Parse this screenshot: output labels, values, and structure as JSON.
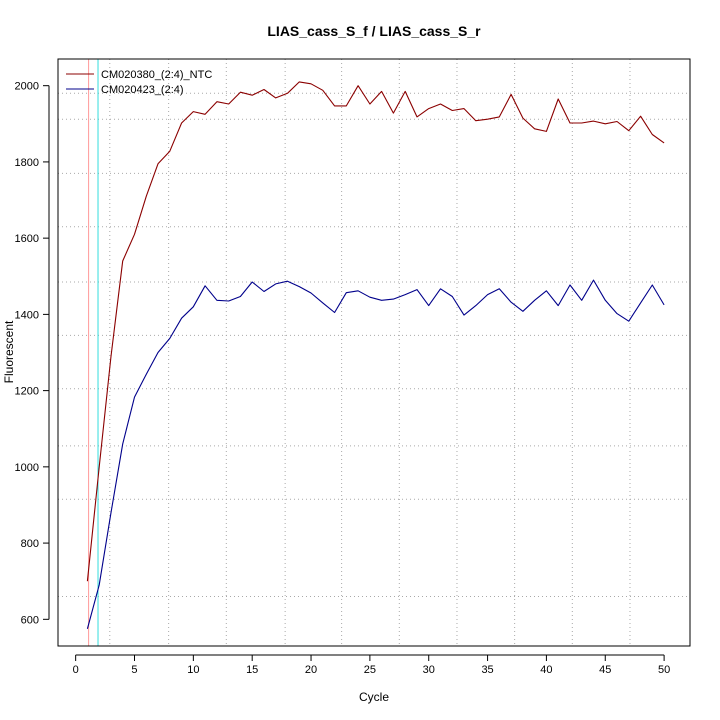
{
  "chart_data": {
    "type": "line",
    "title": "LIAS_cass_S_f / LIAS_cass_S_r",
    "xlabel": "Cycle",
    "ylabel": "Fluorescent",
    "xlim": [
      -1.5,
      52.2
    ],
    "ylim": [
      530,
      2070
    ],
    "x_ticks": [
      0,
      5,
      10,
      15,
      20,
      25,
      30,
      35,
      40,
      45,
      50
    ],
    "y_ticks": [
      600,
      800,
      1000,
      1200,
      1400,
      1600,
      1800,
      2000
    ],
    "grid": "dotted",
    "legend_position": "top-left",
    "colors": {
      "plot_border": "#000000",
      "grid": "#a9a9a9",
      "threshold_red": "#ff9999",
      "threshold_cyan": "#33dddd"
    },
    "vertical_markers": [
      {
        "x": 1.1,
        "color": "#ff9999"
      },
      {
        "x": 1.9,
        "color": "#33dddd"
      }
    ],
    "vertical_grid_x": [
      2.9,
      7.9,
      12.8,
      17.8,
      22.6,
      27.5,
      32.4,
      37.3,
      42.2,
      47.1
    ],
    "horizontal_grid_y": [
      1980,
      1912,
      1770,
      1630,
      1485,
      1345,
      1205,
      1055,
      915,
      660
    ],
    "series": [
      {
        "name": "CM020380_(2:4)_NTC",
        "color": "#8b0000",
        "x": [
          1,
          2,
          3,
          4,
          5,
          6,
          7,
          8,
          9,
          10,
          11,
          12,
          13,
          14,
          15,
          16,
          17,
          18,
          19,
          20,
          21,
          22,
          23,
          24,
          25,
          26,
          27,
          28,
          29,
          30,
          31,
          32,
          33,
          34,
          35,
          36,
          37,
          38,
          39,
          40,
          41,
          42,
          43,
          44,
          45,
          46,
          47,
          48,
          49,
          50
        ],
        "values": [
          700,
          1000,
          1290,
          1540,
          1610,
          1710,
          1795,
          1828,
          1902,
          1932,
          1925,
          1958,
          1952,
          1983,
          1975,
          1990,
          1968,
          1980,
          2010,
          2005,
          1988,
          1947,
          1947,
          2000,
          1952,
          1985,
          1928,
          1985,
          1918,
          1940,
          1952,
          1935,
          1940,
          1908,
          1912,
          1918,
          1977,
          1915,
          1887,
          1880,
          1965,
          1902,
          1902,
          1907,
          1900,
          1906,
          1882,
          1920,
          1872,
          1850
        ]
      },
      {
        "name": "CM020423_(2:4)",
        "color": "#00008b",
        "x": [
          1,
          2,
          3,
          4,
          5,
          6,
          7,
          8,
          9,
          10,
          11,
          12,
          13,
          14,
          15,
          16,
          17,
          18,
          19,
          20,
          21,
          22,
          23,
          24,
          25,
          26,
          27,
          28,
          29,
          30,
          31,
          32,
          33,
          34,
          35,
          36,
          37,
          38,
          39,
          40,
          41,
          42,
          43,
          44,
          45,
          46,
          47,
          48,
          49,
          50
        ],
        "values": [
          575,
          690,
          880,
          1060,
          1183,
          1243,
          1300,
          1337,
          1390,
          1420,
          1475,
          1437,
          1435,
          1447,
          1485,
          1460,
          1480,
          1487,
          1473,
          1456,
          1430,
          1405,
          1457,
          1462,
          1445,
          1437,
          1440,
          1452,
          1465,
          1423,
          1467,
          1447,
          1398,
          1423,
          1452,
          1467,
          1432,
          1408,
          1437,
          1462,
          1423,
          1477,
          1437,
          1490,
          1437,
          1402,
          1382,
          1430,
          1477,
          1425
        ]
      }
    ]
  }
}
